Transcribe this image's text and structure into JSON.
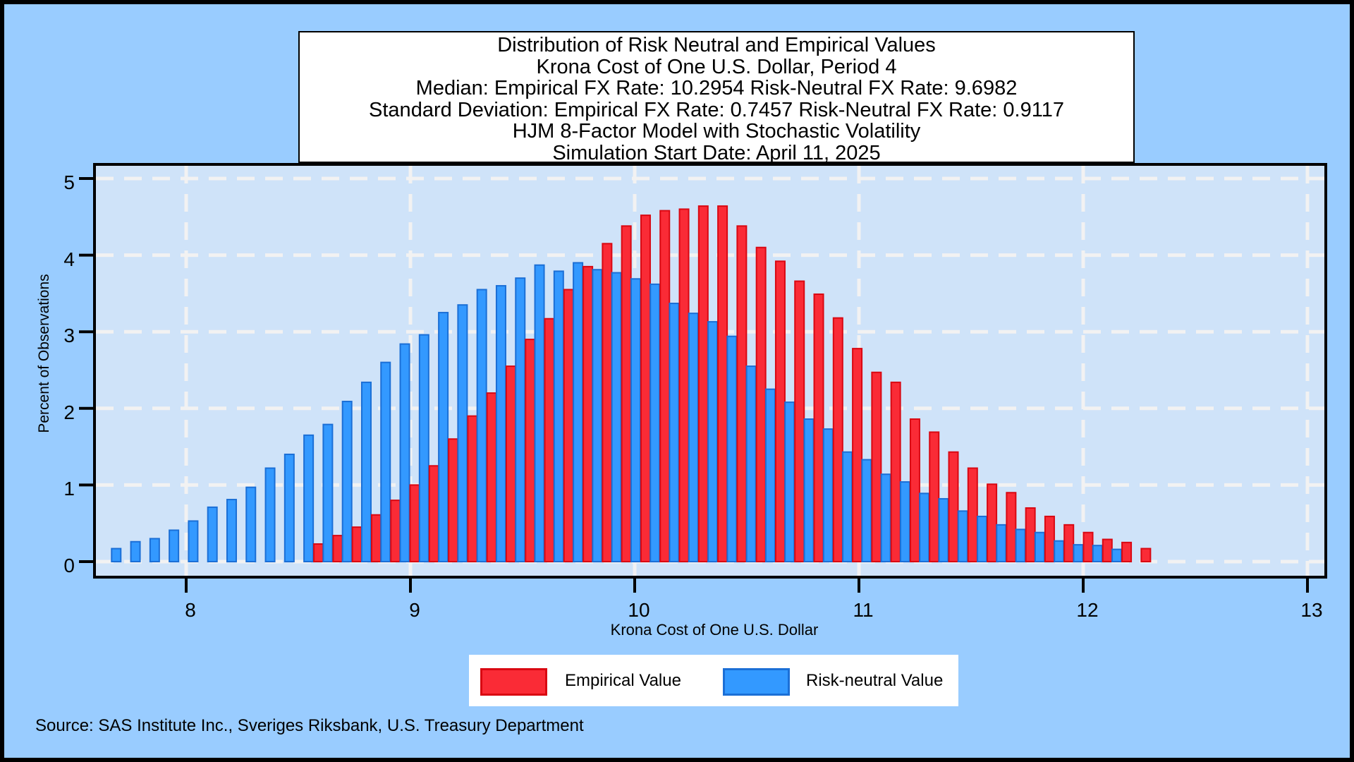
{
  "title_box": {
    "lines": [
      "Distribution of Risk Neutral and Empirical Values",
      "Krona Cost of One U.S. Dollar, Period 4",
      "Median: Empirical FX Rate: 10.2954   Risk-Neutral FX Rate:  9.6982",
      "Standard Deviation: Empirical FX Rate:  0.7457   Risk-Neutral FX Rate:  0.9117",
      "HJM 8-Factor Model with Stochastic Volatility",
      "Simulation Start Date: April 11, 2025"
    ]
  },
  "y_axis": {
    "title": "Percent of Observations",
    "tick_labels": [
      "0",
      "1",
      "2",
      "3",
      "4",
      "5"
    ]
  },
  "x_axis": {
    "title": "Krona Cost of One U.S. Dollar",
    "tick_labels": [
      "8",
      "9",
      "10",
      "11",
      "12",
      "13"
    ]
  },
  "legend": {
    "items": [
      {
        "label": "Empirical Value",
        "fill": "#FA2B36",
        "border": "#D90812"
      },
      {
        "label": "Risk-neutral Value",
        "fill": "#3399FF",
        "border": "#1B6FD6"
      }
    ]
  },
  "source_line": "Source: SAS Institute Inc., Sveriges Riksbank, U.S. Treasury Department",
  "colors": {
    "page_background": "#99CCFF",
    "plot_background": "#CFE3F9",
    "gridline": "#F2F2F2",
    "axis": "#000000",
    "empirical_fill": "#FA2B36",
    "empirical_border": "#D90812",
    "risk_neutral_fill": "#3399FF",
    "risk_neutral_border": "#1B6FD6"
  },
  "chart_data": {
    "type": "bar",
    "title": "Distribution of Risk Neutral and Empirical Values, Krona Cost of One U.S. Dollar, Period 4",
    "xlabel": "Krona Cost of One U.S. Dollar",
    "ylabel": "Percent of Observations",
    "x_ticks": [
      8,
      9,
      10,
      11,
      12,
      13
    ],
    "y_ticks": [
      0,
      1,
      2,
      3,
      4,
      5
    ],
    "xlim": [
      7.59,
      13.08
    ],
    "ylim": [
      0,
      5.18
    ],
    "grid": true,
    "legend_position": "bottom",
    "bin_start": 7.71,
    "bin_step": 0.0858,
    "n_bins": 54,
    "series": [
      {
        "name": "Risk-neutral Value",
        "values": [
          0.17,
          0.26,
          0.3,
          0.41,
          0.53,
          0.71,
          0.81,
          0.97,
          1.22,
          1.4,
          1.65,
          1.79,
          2.09,
          2.34,
          2.6,
          2.84,
          2.96,
          3.25,
          3.35,
          3.55,
          3.6,
          3.7,
          3.87,
          3.79,
          3.9,
          3.81,
          3.77,
          3.69,
          3.62,
          3.37,
          3.24,
          3.13,
          2.94,
          2.55,
          2.25,
          2.08,
          1.86,
          1.73,
          1.43,
          1.33,
          1.14,
          1.04,
          0.89,
          0.82,
          0.66,
          0.59,
          0.48,
          0.42,
          0.38,
          0.27,
          0.22,
          0.21,
          0.16,
          0
        ]
      },
      {
        "name": "Empirical Value",
        "values": [
          0,
          0,
          0,
          0,
          0,
          0,
          0,
          0,
          0,
          0,
          0.23,
          0.34,
          0.45,
          0.61,
          0.8,
          1.0,
          1.25,
          1.6,
          1.9,
          2.2,
          2.55,
          2.9,
          3.17,
          3.55,
          3.85,
          4.15,
          4.38,
          4.52,
          4.58,
          4.6,
          4.64,
          4.64,
          4.38,
          4.1,
          3.92,
          3.66,
          3.49,
          3.18,
          2.78,
          2.47,
          2.34,
          1.86,
          1.69,
          1.43,
          1.22,
          1.01,
          0.9,
          0.7,
          0.59,
          0.48,
          0.38,
          0.29,
          0.25,
          0.17
        ]
      }
    ]
  }
}
